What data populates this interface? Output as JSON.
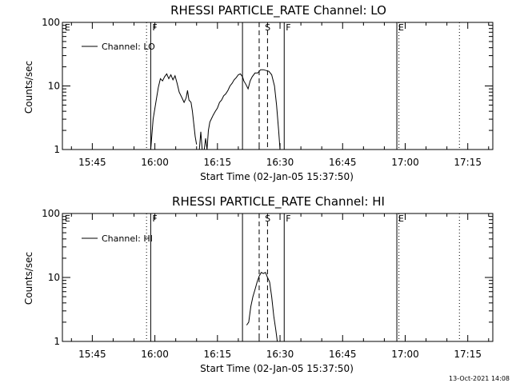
{
  "footer_timestamp": "13-Oct-2021 14:08",
  "chart_data": [
    {
      "type": "line",
      "title": "RHESSI PARTICLE_RATE Channel: LO",
      "xlabel": "Start Time (02-Jan-05 15:37:50)",
      "ylabel": "Counts/sec",
      "xlim": [
        "15:37:50",
        "17:21:00"
      ],
      "ylim": [
        1,
        100
      ],
      "yscale": "log",
      "xticks": [
        "15:45",
        "16:00",
        "16:15",
        "16:30",
        "16:45",
        "17:00",
        "17:15"
      ],
      "yticks": [
        "1",
        "10",
        "100"
      ],
      "legend": {
        "placement": "top-left",
        "label": "Channel: LO"
      },
      "markers": [
        {
          "time": "15:38",
          "label": "E",
          "style": "none"
        },
        {
          "time": "15:58",
          "label": "",
          "style": "dotted"
        },
        {
          "time": "15:59",
          "label": "F",
          "style": "solid"
        },
        {
          "time": "16:21",
          "label": "",
          "style": "solid"
        },
        {
          "time": "16:25",
          "label": "",
          "style": "dashed"
        },
        {
          "time": "16:26",
          "label": "S",
          "style": "none"
        },
        {
          "time": "16:27",
          "label": "",
          "style": "dashed"
        },
        {
          "time": "16:31",
          "label": "F",
          "style": "solid"
        },
        {
          "time": "16:58",
          "label": "E",
          "style": "solid"
        },
        {
          "time": "16:58.5",
          "label": "",
          "style": "dotted"
        },
        {
          "time": "17:13",
          "label": "",
          "style": "dotted"
        }
      ],
      "series": [
        {
          "name": "Channel: LO",
          "segments": [
            [
              [
                "15:59:00",
                1.0
              ],
              [
                "15:59:35",
                3.0
              ],
              [
                "16:00:20",
                6.0
              ],
              [
                "16:00:50",
                9.5
              ],
              [
                "16:01:20",
                13.0
              ],
              [
                "16:01:50",
                12.0
              ],
              [
                "16:02:20",
                14.0
              ],
              [
                "16:02:50",
                15.5
              ],
              [
                "16:03:20",
                13.0
              ],
              [
                "16:03:50",
                15.0
              ],
              [
                "16:04:20",
                12.5
              ],
              [
                "16:04:50",
                14.5
              ],
              [
                "16:05:20",
                11.0
              ],
              [
                "16:05:50",
                8.0
              ],
              [
                "16:06:30",
                6.5
              ],
              [
                "16:07:00",
                5.5
              ],
              [
                "16:07:30",
                6.5
              ],
              [
                "16:07:50",
                8.5
              ],
              [
                "16:08:10",
                6.0
              ],
              [
                "16:08:40",
                5.5
              ],
              [
                "16:09:00",
                4.0
              ],
              [
                "16:09:20",
                2.5
              ],
              [
                "16:09:40",
                1.6
              ],
              [
                "16:10:00",
                1.2
              ]
            ],
            [
              [
                "16:10:40",
                1.0
              ],
              [
                "16:11:00",
                1.9
              ],
              [
                "16:11:20",
                1.0
              ]
            ],
            [
              [
                "16:11:50",
                1.0
              ],
              [
                "16:12:10",
                1.5
              ],
              [
                "16:12:30",
                1.0
              ],
              [
                "16:12:50",
                2.0
              ],
              [
                "16:13:10",
                2.7
              ],
              [
                "16:13:30",
                3.0
              ],
              [
                "16:14:00",
                3.5
              ],
              [
                "16:14:30",
                4.0
              ],
              [
                "16:15:00",
                4.5
              ],
              [
                "16:15:30",
                5.5
              ],
              [
                "16:16:00",
                6.0
              ],
              [
                "16:16:30",
                7.0
              ],
              [
                "16:17:00",
                7.5
              ],
              [
                "16:17:30",
                8.5
              ],
              [
                "16:18:00",
                10.0
              ],
              [
                "16:18:30",
                11.0
              ],
              [
                "16:19:00",
                12.5
              ],
              [
                "16:19:30",
                13.5
              ],
              [
                "16:20:00",
                15.0
              ],
              [
                "16:20:30",
                15.5
              ],
              [
                "16:21:00",
                14.0
              ],
              [
                "16:21:20",
                12.0
              ],
              [
                "16:21:50",
                10.5
              ],
              [
                "16:22:20",
                9.0
              ],
              [
                "16:22:50",
                12.0
              ],
              [
                "16:23:20",
                14.0
              ],
              [
                "16:24:00",
                16.0
              ],
              [
                "16:24:40",
                16.0
              ],
              [
                "16:25:20",
                18.0
              ],
              [
                "16:26:00",
                18.0
              ],
              [
                "16:26:40",
                17.5
              ],
              [
                "16:27:20",
                17.0
              ],
              [
                "16:28:00",
                15.0
              ],
              [
                "16:28:40",
                10.0
              ],
              [
                "16:29:10",
                5.0
              ],
              [
                "16:29:40",
                2.0
              ],
              [
                "16:30:00",
                1.0
              ]
            ]
          ]
        }
      ]
    },
    {
      "type": "line",
      "title": "RHESSI PARTICLE_RATE Channel: HI",
      "xlabel": "Start Time (02-Jan-05 15:37:50)",
      "ylabel": "Counts/sec",
      "xlim": [
        "15:37:50",
        "17:21:00"
      ],
      "ylim": [
        1,
        100
      ],
      "yscale": "log",
      "xticks": [
        "15:45",
        "16:00",
        "16:15",
        "16:30",
        "16:45",
        "17:00",
        "17:15"
      ],
      "yticks": [
        "1",
        "10",
        "100"
      ],
      "legend": {
        "placement": "top-left",
        "label": "Channel: HI"
      },
      "markers": [
        {
          "time": "15:38",
          "label": "E",
          "style": "none"
        },
        {
          "time": "15:58",
          "label": "",
          "style": "dotted"
        },
        {
          "time": "15:59",
          "label": "F",
          "style": "solid"
        },
        {
          "time": "16:21",
          "label": "",
          "style": "solid"
        },
        {
          "time": "16:25",
          "label": "",
          "style": "dashed"
        },
        {
          "time": "16:26",
          "label": "S",
          "style": "none"
        },
        {
          "time": "16:27",
          "label": "",
          "style": "dashed"
        },
        {
          "time": "16:31",
          "label": "F",
          "style": "solid"
        },
        {
          "time": "16:58",
          "label": "E",
          "style": "solid"
        },
        {
          "time": "16:58.5",
          "label": "",
          "style": "dotted"
        },
        {
          "time": "17:13",
          "label": "",
          "style": "dotted"
        }
      ],
      "series": [
        {
          "name": "Channel: HI",
          "segments": [
            [
              [
                "16:22:00",
                1.8
              ],
              [
                "16:22:30",
                2.0
              ],
              [
                "16:23:00",
                3.5
              ],
              [
                "16:23:30",
                5.0
              ],
              [
                "16:24:00",
                6.5
              ],
              [
                "16:24:30",
                8.5
              ],
              [
                "16:25:00",
                10.5
              ],
              [
                "16:25:30",
                12.0
              ],
              [
                "16:26:00",
                11.5
              ],
              [
                "16:26:30",
                12.0
              ],
              [
                "16:27:00",
                10.0
              ],
              [
                "16:27:30",
                8.5
              ],
              [
                "16:28:00",
                5.0
              ],
              [
                "16:28:30",
                2.5
              ],
              [
                "16:29:00",
                1.5
              ],
              [
                "16:29:20",
                1.0
              ]
            ]
          ]
        }
      ]
    }
  ]
}
